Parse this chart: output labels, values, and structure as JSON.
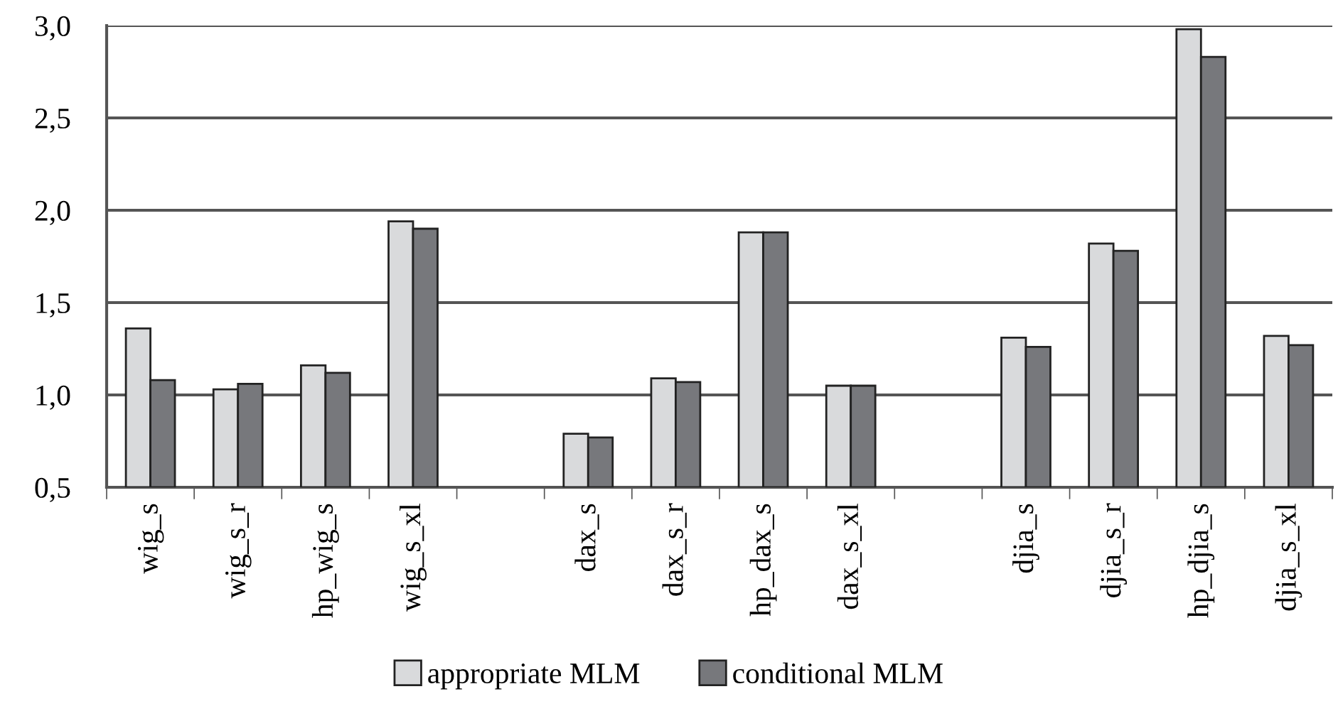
{
  "chart_data": {
    "type": "bar",
    "categories": [
      "wig_s",
      "wig_s_r",
      "hp_wig_s",
      "wig_s_xl",
      null,
      "dax_s",
      "dax_s_r",
      "hp_dax_s",
      "dax_s_xl",
      null,
      "djia_s",
      "djia_s_r",
      "hp_djia_s",
      "djia_s_xl"
    ],
    "series": [
      {
        "name": "appropriate MLM",
        "color": "#d9dadc",
        "values": [
          1.36,
          1.03,
          1.16,
          1.94,
          null,
          0.79,
          1.09,
          1.88,
          1.05,
          null,
          1.31,
          1.82,
          2.98,
          1.32
        ]
      },
      {
        "name": "conditional MLM",
        "color": "#77787c",
        "values": [
          1.08,
          1.06,
          1.12,
          1.9,
          null,
          0.77,
          1.07,
          1.88,
          1.05,
          null,
          1.26,
          1.78,
          2.83,
          1.27
        ]
      }
    ],
    "ylim": [
      0.5,
      3.0
    ],
    "yticks": [
      {
        "value": 0.5,
        "label": "0,5"
      },
      {
        "value": 1.0,
        "label": "1,0"
      },
      {
        "value": 1.5,
        "label": "1,5"
      },
      {
        "value": 2.0,
        "label": "2,0"
      },
      {
        "value": 2.5,
        "label": "2,5"
      },
      {
        "value": 3.0,
        "label": "3,0"
      }
    ],
    "grid": "y",
    "legend": "bottom"
  }
}
